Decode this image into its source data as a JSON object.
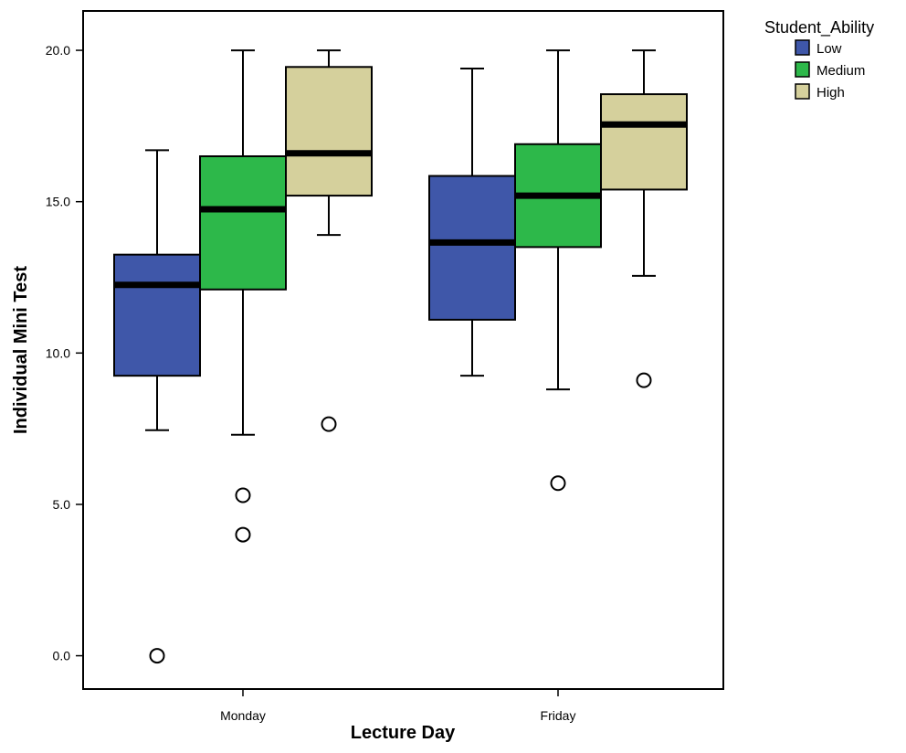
{
  "chart_data": {
    "type": "boxplot",
    "xlabel": "Lecture Day",
    "ylabel": "Individual Mini Test",
    "ylim": [
      -1.1,
      21.3
    ],
    "yticks": [
      "0.0",
      "5.0",
      "10.0",
      "15.0",
      "20.0"
    ],
    "ytick_values": [
      0,
      5,
      10,
      15,
      20
    ],
    "categories": [
      "Monday",
      "Friday"
    ],
    "legend": {
      "title": "Student_Ability",
      "placement": "top-right"
    },
    "series": [
      {
        "name": "Low",
        "color": "#3f57a9",
        "boxes": [
          {
            "category": "Monday",
            "whisker_low": 7.45,
            "q1": 9.25,
            "median": 12.25,
            "q3": 13.25,
            "whisker_high": 16.7,
            "outliers": [
              0.0
            ]
          },
          {
            "category": "Friday",
            "whisker_low": 9.25,
            "q1": 11.1,
            "median": 13.65,
            "q3": 15.85,
            "whisker_high": 19.4,
            "outliers": []
          }
        ]
      },
      {
        "name": "Medium",
        "color": "#2db84a",
        "boxes": [
          {
            "category": "Monday",
            "whisker_low": 7.3,
            "q1": 12.1,
            "median": 14.75,
            "q3": 16.5,
            "whisker_high": 20.0,
            "outliers": [
              5.3,
              4.0
            ]
          },
          {
            "category": "Friday",
            "whisker_low": 8.8,
            "q1": 13.5,
            "median": 15.2,
            "q3": 16.9,
            "whisker_high": 20.0,
            "outliers": [
              5.7
            ]
          }
        ]
      },
      {
        "name": "High",
        "color": "#d5d09c",
        "boxes": [
          {
            "category": "Monday",
            "whisker_low": 13.9,
            "q1": 15.2,
            "median": 16.6,
            "q3": 19.45,
            "whisker_high": 20.0,
            "outliers": [
              7.65
            ]
          },
          {
            "category": "Friday",
            "whisker_low": 12.55,
            "q1": 15.4,
            "median": 17.55,
            "q3": 18.55,
            "whisker_high": 20.0,
            "outliers": [
              9.1
            ]
          }
        ]
      }
    ]
  }
}
